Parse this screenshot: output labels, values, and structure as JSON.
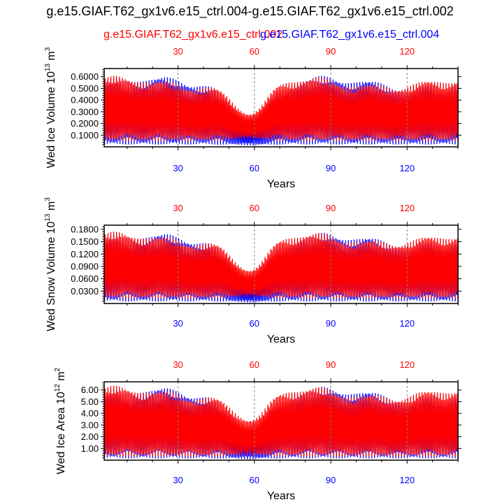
{
  "title": "g.e15.GIAF.T62_gx1v6.e15_ctrl.004-g.e15.GIAF.T62_gx1v6.e15_ctrl.002",
  "legend": {
    "red_label": "g.e15.GIAF.T62_gx1v6.e15_ctrl.002",
    "blue_label": "g.e15.GIAF.T62_gx1v6.e15_ctrl.004"
  },
  "colors": {
    "red": "#ff0000",
    "blue": "#0000ff",
    "axis": "#000000",
    "grid": "#808080"
  },
  "chart_data": [
    {
      "type": "line",
      "name": "wed-ice-volume",
      "ylabel": "Wed Ice Volume 10",
      "ylabel_exp": "13",
      "ylabel_unit": " m",
      "ylabel_unit_exp": "3",
      "xlabel": "Years",
      "ylim": [
        0.0,
        0.67
      ],
      "yticks": [
        0.1,
        0.2,
        0.3,
        0.4,
        0.5,
        0.6
      ],
      "ytick_labels": [
        "0.1000",
        "0.2000",
        "0.3000",
        "0.4000",
        "0.5000",
        "0.6000"
      ],
      "x_range": [
        1,
        140
      ],
      "xticks": [
        30,
        60,
        90,
        120
      ],
      "xtick_labels": [
        "30",
        "60",
        "90",
        "120"
      ],
      "series": [
        {
          "name": "g.e15.GIAF.T62_gx1v6.e15_ctrl.004",
          "color": "#0000ff",
          "min": 0.02,
          "peak": 0.62,
          "dip_center": 58,
          "dip_min_peak": 0.2
        },
        {
          "name": "g.e15.GIAF.T62_gx1v6.e15_ctrl.002",
          "color": "#ff0000",
          "min": 0.05,
          "peak": 0.62,
          "dip_center": 58,
          "dip_min_peak": 0.28
        }
      ]
    },
    {
      "type": "line",
      "name": "wed-snow-volume",
      "ylabel": "Wed Snow Volume 10",
      "ylabel_exp": "13",
      "ylabel_unit": " m",
      "ylabel_unit_exp": "3",
      "xlabel": "Years",
      "ylim": [
        0.0,
        0.19
      ],
      "yticks": [
        0.03,
        0.06,
        0.09,
        0.12,
        0.15,
        0.18
      ],
      "ytick_labels": [
        "0.0300",
        "0.0600",
        "0.0900",
        "0.1200",
        "0.1500",
        "0.1800"
      ],
      "x_range": [
        1,
        140
      ],
      "xticks": [
        30,
        60,
        90,
        120
      ],
      "xtick_labels": [
        "30",
        "60",
        "90",
        "120"
      ],
      "series": [
        {
          "name": "g.e15.GIAF.T62_gx1v6.e15_ctrl.004",
          "color": "#0000ff",
          "min": 0.005,
          "peak": 0.175,
          "dip_center": 58,
          "dip_min_peak": 0.05
        },
        {
          "name": "g.e15.GIAF.T62_gx1v6.e15_ctrl.002",
          "color": "#ff0000",
          "min": 0.012,
          "peak": 0.178,
          "dip_center": 58,
          "dip_min_peak": 0.08
        }
      ]
    },
    {
      "type": "line",
      "name": "wed-ice-area",
      "ylabel": "Wed Ice Area 10",
      "ylabel_exp": "12",
      "ylabel_unit": " m",
      "ylabel_unit_exp": "2",
      "xlabel": "Years",
      "ylim": [
        0.0,
        6.7
      ],
      "yticks": [
        1,
        2,
        3,
        4,
        5,
        6
      ],
      "ytick_labels": [
        "1.00",
        "2.00",
        "3.00",
        "4.00",
        "5.00",
        "6.00"
      ],
      "x_range": [
        1,
        140
      ],
      "xticks": [
        30,
        60,
        90,
        120
      ],
      "xtick_labels": [
        "30",
        "60",
        "90",
        "120"
      ],
      "series": [
        {
          "name": "g.e15.GIAF.T62_gx1v6.e15_ctrl.004",
          "color": "#0000ff",
          "min": 0.15,
          "peak": 6.4,
          "dip_center": 58,
          "dip_min_peak": 2.4
        },
        {
          "name": "g.e15.GIAF.T62_gx1v6.e15_ctrl.002",
          "color": "#ff0000",
          "min": 0.3,
          "peak": 6.5,
          "dip_center": 58,
          "dip_min_peak": 3.4
        }
      ]
    }
  ]
}
